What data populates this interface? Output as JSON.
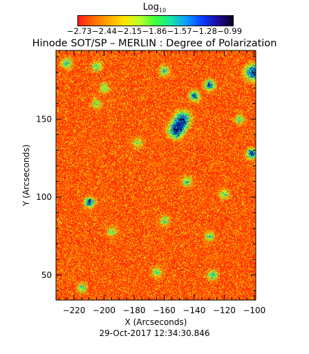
{
  "chart_data": {
    "type": "heatmap",
    "title": "Hinode SOT/SP – MERLIN : Degree of Polarization",
    "xlabel": "X (Arcseconds)",
    "ylabel": "Y (Arcseconds)",
    "xlim": [
      -232,
      -99
    ],
    "ylim": [
      34,
      194
    ],
    "x_ticks": [
      -220,
      -200,
      -180,
      -160,
      -140,
      -120,
      -100
    ],
    "y_ticks": [
      50,
      100,
      150
    ],
    "x_tick_labels": [
      "−220",
      "−200",
      "−180",
      "−160",
      "−140",
      "−120",
      "−100"
    ],
    "y_tick_labels": [
      "50",
      "100",
      "150"
    ],
    "colorbar": {
      "title_main": "Log",
      "title_sub": "10",
      "tick_text": "−2.73−2.44−2.15−1.86−1.57−1.28−0.99",
      "range": [
        -2.73,
        -0.99
      ]
    },
    "grid": false,
    "features": [
      {
        "x": -152,
        "y": 143,
        "strength": 0.95,
        "note": "dense"
      },
      {
        "x": -148,
        "y": 150,
        "strength": 0.9
      },
      {
        "x": -140,
        "y": 165,
        "strength": 0.75
      },
      {
        "x": -130,
        "y": 172,
        "strength": 0.8
      },
      {
        "x": -101,
        "y": 180,
        "strength": 0.9
      },
      {
        "x": -102,
        "y": 128,
        "strength": 0.85
      },
      {
        "x": -210,
        "y": 97,
        "strength": 0.8
      },
      {
        "x": -225,
        "y": 186,
        "strength": 0.55
      },
      {
        "x": -205,
        "y": 184,
        "strength": 0.5
      },
      {
        "x": -200,
        "y": 170,
        "strength": 0.45
      },
      {
        "x": -160,
        "y": 181,
        "strength": 0.55
      },
      {
        "x": -145,
        "y": 110,
        "strength": 0.5
      },
      {
        "x": -160,
        "y": 85,
        "strength": 0.45
      },
      {
        "x": -120,
        "y": 102,
        "strength": 0.45
      },
      {
        "x": -128,
        "y": 50,
        "strength": 0.55
      },
      {
        "x": -165,
        "y": 52,
        "strength": 0.45
      },
      {
        "x": -215,
        "y": 42,
        "strength": 0.5
      },
      {
        "x": -195,
        "y": 78,
        "strength": 0.4
      },
      {
        "x": -110,
        "y": 150,
        "strength": 0.45
      },
      {
        "x": -178,
        "y": 135,
        "strength": 0.4
      },
      {
        "x": -205,
        "y": 160,
        "strength": 0.4
      },
      {
        "x": -130,
        "y": 75,
        "strength": 0.45
      }
    ]
  },
  "timestamp": "29-Oct-2017 12:34:30.846"
}
